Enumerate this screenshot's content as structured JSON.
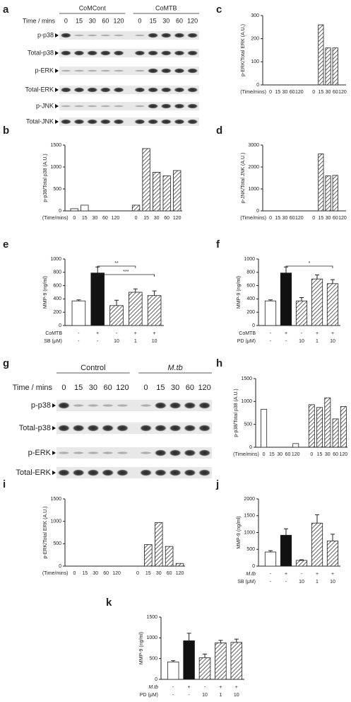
{
  "blots": [
    {
      "panel": "a",
      "groups": [
        "CoMCont",
        "CoMTB"
      ],
      "time_label": "Time / mins",
      "lanes": [
        "0",
        "15",
        "30",
        "60",
        "120",
        "0",
        "15",
        "30",
        "60",
        "120"
      ],
      "rows": [
        "p-p38",
        "Total-p38",
        "p-ERK",
        "Total-ERK",
        "p-JNK",
        "Total-JNK"
      ]
    },
    {
      "panel": "g",
      "groups": [
        "Control",
        "M.tb"
      ],
      "time_label": "Time / mins",
      "lanes": [
        "0",
        "15",
        "30",
        "60",
        "120",
        "0",
        "15",
        "30",
        "60",
        "120"
      ],
      "rows": [
        "p-p38",
        "Total-p38",
        "p-ERK",
        "Total-ERK"
      ]
    }
  ],
  "chart_data": [
    {
      "type": "bar",
      "panel": "c",
      "ylabel": "p-ERK/Total ERK (A.U.)",
      "x_label": "(Time/mins)",
      "categories": [
        "0",
        "15",
        "30",
        "60",
        "120",
        "0",
        "15",
        "30",
        "60",
        "120"
      ],
      "values": [
        0,
        0,
        0,
        0,
        0,
        0,
        260,
        160,
        160,
        0
      ],
      "styles": [
        "open",
        "open",
        "open",
        "open",
        "open",
        "hatched",
        "hatched",
        "hatched",
        "hatched",
        "hatched"
      ],
      "ylim": [
        0,
        300
      ],
      "yticks": [
        0,
        100,
        200,
        300
      ]
    },
    {
      "type": "bar",
      "panel": "b",
      "ylabel": "p-p38/Total p38 (A.U.)",
      "x_label": "(Time/mins)",
      "categories": [
        "0",
        "15",
        "30",
        "60",
        "120",
        "0",
        "15",
        "30",
        "60",
        "120"
      ],
      "values": [
        50,
        130,
        0,
        0,
        0,
        130,
        1420,
        880,
        800,
        920
      ],
      "styles": [
        "open",
        "open",
        "open",
        "open",
        "open",
        "hatched",
        "hatched",
        "hatched",
        "hatched",
        "hatched"
      ],
      "ylim": [
        0,
        1500
      ],
      "yticks": [
        0,
        500,
        1000,
        1500
      ]
    },
    {
      "type": "bar",
      "panel": "d",
      "ylabel": "p-JNK/Total JNK (A.U.)",
      "x_label": "(Time/mins)",
      "categories": [
        "0",
        "15",
        "30",
        "60",
        "120",
        "0",
        "15",
        "30",
        "60",
        "120"
      ],
      "values": [
        0,
        0,
        0,
        0,
        0,
        0,
        2600,
        1600,
        1620,
        0
      ],
      "styles": [
        "open",
        "open",
        "open",
        "open",
        "open",
        "hatched",
        "hatched",
        "hatched",
        "hatched",
        "hatched"
      ],
      "ylim": [
        0,
        3000
      ],
      "yticks": [
        0,
        1000,
        2000,
        3000
      ]
    },
    {
      "type": "bar",
      "panel": "e",
      "ylabel": "MMP-9 (ng/ml)",
      "values": [
        370,
        790,
        300,
        500,
        450
      ],
      "errors": [
        15,
        90,
        80,
        50,
        70
      ],
      "styles": [
        "open",
        "solid",
        "hatched",
        "hatched",
        "hatched"
      ],
      "conditions": [
        {
          "label": "CoMTB",
          "values": [
            "-",
            "+",
            "-",
            "+",
            "+"
          ]
        },
        {
          "label": "SB (μM)",
          "values": [
            "-",
            "-",
            "10",
            "1",
            "10"
          ]
        }
      ],
      "comparisons": [
        {
          "label": "**",
          "between": [
            1,
            3
          ]
        },
        {
          "label": "***",
          "between": [
            1,
            4
          ]
        }
      ],
      "ylim": [
        0,
        1000
      ],
      "yticks": [
        0,
        200,
        400,
        600,
        800,
        1000
      ]
    },
    {
      "type": "bar",
      "panel": "f",
      "ylabel": "MMP-9 (ng/ml)",
      "values": [
        370,
        790,
        370,
        700,
        630
      ],
      "errors": [
        15,
        90,
        50,
        60,
        60
      ],
      "styles": [
        "open",
        "solid",
        "hatched",
        "hatched",
        "hatched"
      ],
      "conditions": [
        {
          "label": "CoMTB",
          "values": [
            "-",
            "+",
            "-",
            "+",
            "+"
          ]
        },
        {
          "label": "PD (μM)",
          "values": [
            "-",
            "-",
            "10",
            "1",
            "10"
          ]
        }
      ],
      "comparisons": [
        {
          "label": "*",
          "between": [
            1,
            4
          ]
        }
      ],
      "ylim": [
        0,
        1000
      ],
      "yticks": [
        0,
        200,
        400,
        600,
        800,
        1000
      ]
    },
    {
      "type": "bar",
      "panel": "h",
      "ylabel": "p-p38/Total p38 (A.U.)",
      "x_label": "(Time/mins)",
      "categories": [
        "0",
        "15",
        "30",
        "60",
        "120",
        "0",
        "15",
        "30",
        "60",
        "120"
      ],
      "values": [
        830,
        0,
        0,
        0,
        80,
        930,
        870,
        1080,
        620,
        890
      ],
      "styles": [
        "open",
        "open",
        "open",
        "open",
        "open",
        "hatched",
        "hatched",
        "hatched",
        "hatched",
        "hatched"
      ],
      "ylim": [
        0,
        1500
      ],
      "yticks": [
        0,
        500,
        1000,
        1500
      ]
    },
    {
      "type": "bar",
      "panel": "i",
      "ylabel": "p-ERK/Total ERK (A.U.)",
      "x_label": "(Time/mins)",
      "categories": [
        "0",
        "15",
        "30",
        "60",
        "120",
        "0",
        "15",
        "30",
        "60",
        "120"
      ],
      "values": [
        0,
        0,
        0,
        0,
        0,
        0,
        480,
        970,
        440,
        60
      ],
      "styles": [
        "open",
        "open",
        "open",
        "open",
        "open",
        "hatched",
        "hatched",
        "hatched",
        "hatched",
        "hatched"
      ],
      "ylim": [
        0,
        1500
      ],
      "yticks": [
        0,
        500,
        1000,
        1500
      ]
    },
    {
      "type": "bar",
      "panel": "j",
      "ylabel": "MMP-9 (ng/ml)",
      "values": [
        420,
        920,
        170,
        1280,
        750
      ],
      "errors": [
        40,
        190,
        20,
        250,
        200
      ],
      "styles": [
        "open",
        "solid",
        "hatched",
        "hatched",
        "hatched"
      ],
      "conditions": [
        {
          "label": "M.tb",
          "values": [
            "-",
            "+",
            "-",
            "+",
            "+"
          ]
        },
        {
          "label": "SB (μM)",
          "values": [
            "-",
            "-",
            "10",
            "1",
            "10"
          ]
        }
      ],
      "ylim": [
        0,
        2000
      ],
      "yticks": [
        0,
        500,
        1000,
        1500,
        2000
      ]
    },
    {
      "type": "bar",
      "panel": "k",
      "ylabel": "MMP-9 (ng/ml)",
      "values": [
        420,
        930,
        520,
        880,
        890
      ],
      "errors": [
        30,
        180,
        90,
        60,
        80
      ],
      "styles": [
        "open",
        "solid",
        "hatched",
        "hatched",
        "hatched"
      ],
      "conditions": [
        {
          "label": "M.tb",
          "values": [
            "-",
            "+",
            "-",
            "+",
            "+"
          ]
        },
        {
          "label": "PD (μM)",
          "values": [
            "-",
            "-",
            "10",
            "1",
            "10"
          ]
        }
      ],
      "ylim": [
        0,
        1500
      ],
      "yticks": [
        0,
        500,
        1000,
        1500
      ]
    }
  ]
}
